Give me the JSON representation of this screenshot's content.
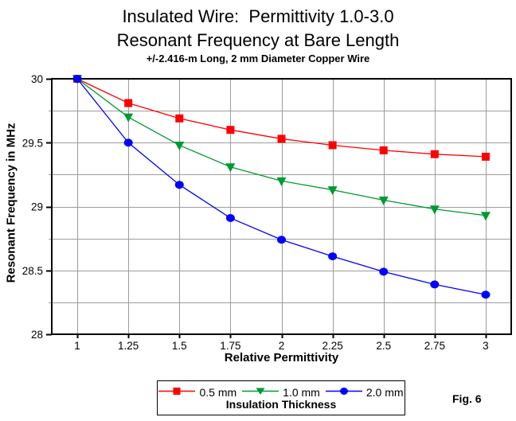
{
  "chart_data": {
    "type": "line",
    "title_line1": "Insulated Wire:  Permittivity 1.0-3.0",
    "title_line2": "Resonant Frequency at Bare Length",
    "subtitle": "+/-2.416-m Long, 2 mm Diameter Copper Wire",
    "xlabel": "Relative Permittivity",
    "ylabel": "Resonant Frequency in MHz",
    "x": [
      1,
      1.25,
      1.5,
      1.75,
      2,
      2.25,
      2.5,
      2.75,
      3
    ],
    "x_tick_labels": [
      "1",
      "1.25",
      "1.5",
      "1.75",
      "2",
      "2.25",
      "2.5",
      "2.75",
      "3"
    ],
    "xlim": [
      0.875,
      3.125
    ],
    "ylim": [
      28,
      30
    ],
    "y_major_ticks": [
      {
        "value": 28,
        "label": "28"
      },
      {
        "value": 28.5,
        "label": "28.5"
      },
      {
        "value": 29,
        "label": "29"
      },
      {
        "value": 29.5,
        "label": "29.5"
      },
      {
        "value": 30,
        "label": "30"
      }
    ],
    "y_minor_ticks": [
      28.25,
      28.75,
      29.25,
      29.75
    ],
    "grid": true,
    "legend_title": "Insulation Thickness",
    "legend_position": "bottom",
    "series": [
      {
        "name": "0.5 mm",
        "marker": "square",
        "color": "#ff0000",
        "values": [
          30,
          29.81,
          29.69,
          29.6,
          29.53,
          29.48,
          29.44,
          29.41,
          29.39
        ]
      },
      {
        "name": "1.0 mm",
        "marker": "triangle-down",
        "color": "#009933",
        "values": [
          30,
          29.7,
          29.48,
          29.31,
          29.2,
          29.13,
          29.05,
          28.98,
          28.93
        ]
      },
      {
        "name": "2.0 mm",
        "marker": "circle",
        "color": "#0000ff",
        "values": [
          30,
          29.5,
          29.17,
          28.91,
          28.74,
          28.61,
          28.49,
          28.39,
          28.31
        ]
      }
    ],
    "colors": {
      "axis": "#000000",
      "grid": "#9c9c9c",
      "background": "#ffffff"
    }
  },
  "figure_label": "Fig. 6"
}
